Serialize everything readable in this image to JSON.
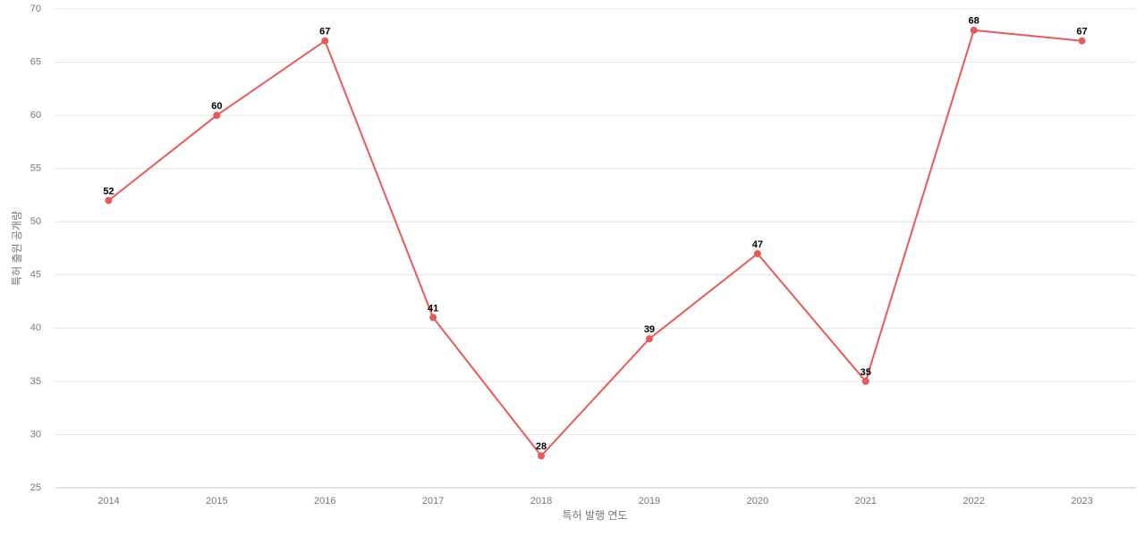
{
  "chart_data": {
    "type": "line",
    "x_label": "특허 발행 연도",
    "y_label": "특허 출원 공개량",
    "categories": [
      "2014",
      "2015",
      "2016",
      "2017",
      "2018",
      "2019",
      "2020",
      "2021",
      "2022",
      "2023"
    ],
    "series": [
      {
        "color": "#e85a5a",
        "values": [
          52,
          60,
          67,
          41,
          28,
          39,
          47,
          35,
          68,
          67
        ]
      }
    ],
    "ylim": [
      25,
      70
    ],
    "yticks": [
      25,
      30,
      35,
      40,
      45,
      50,
      55,
      60,
      65,
      70
    ],
    "grid": true,
    "data_labels": true
  }
}
